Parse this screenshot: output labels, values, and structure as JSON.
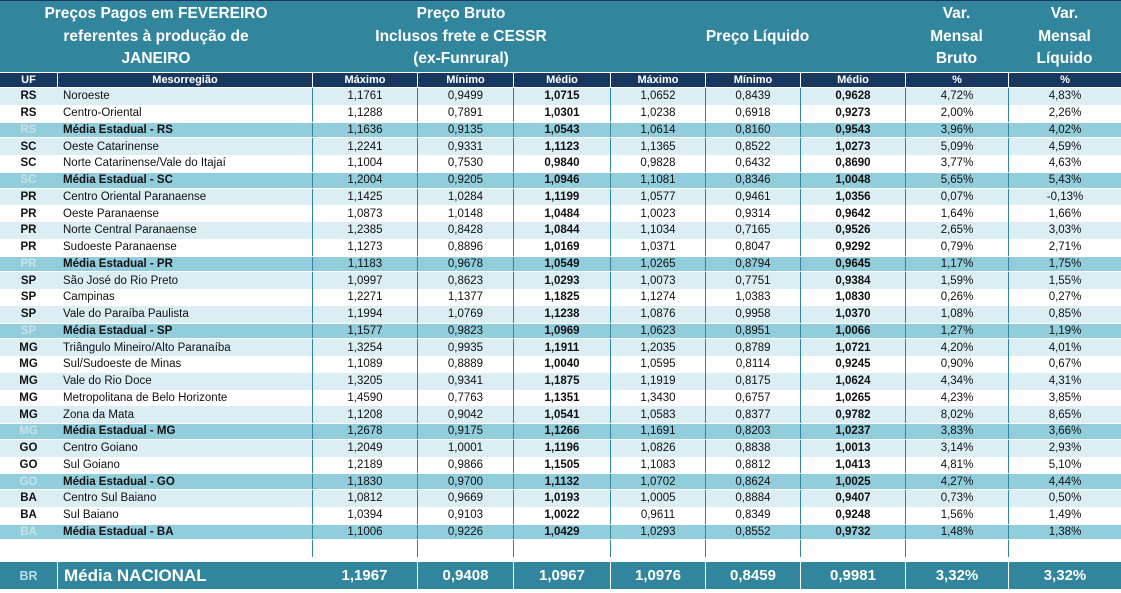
{
  "colors": {
    "teal": "#31859C",
    "navy": "#17375E",
    "row-light": "#DAEEF3",
    "row-media": "#92CDDC",
    "border-data": "#31859C",
    "uf-media-text": "#C7E2EB",
    "footer-uf-text": "#B7DEE8",
    "text-dark": "#111111"
  },
  "header": {
    "title": {
      "line1": "Preços Pagos em FEVEREIRO",
      "line2": "referentes à produção de",
      "line3": "JANEIRO"
    },
    "groups": {
      "bruto": {
        "line1": "Preço Bruto",
        "line2": "Inclusos frete e CESSR",
        "line3": "(ex-Funrural)"
      },
      "liquido": "Preço Líquido",
      "var_bruto": {
        "line1": "Var.",
        "line2": "Mensal",
        "line3": "Bruto"
      },
      "var_liquido": {
        "line1": "Var.",
        "line2": "Mensal",
        "line3": "Líquido"
      }
    },
    "columns": {
      "uf": "UF",
      "region": "Mesorregião",
      "bruto_max": "Máximo",
      "bruto_min": "Mínimo",
      "bruto_med": "Médio",
      "liq_max": "Máximo",
      "liq_min": "Mínimo",
      "liq_med": "Médio",
      "var_bruto": "%",
      "var_liq": "%"
    }
  },
  "table": {
    "rows": [
      {
        "uf": "RS",
        "region": "Noroeste",
        "values": [
          "1,1761",
          "0,9499",
          "1,0715",
          "1,0652",
          "0,8439",
          "0,9628",
          "4,72%",
          "4,83%"
        ],
        "kind": "a"
      },
      {
        "uf": "RS",
        "region": "Centro-Oriental",
        "values": [
          "1,1288",
          "0,7891",
          "1,0301",
          "1,0238",
          "0,6918",
          "0,9273",
          "2,00%",
          "2,26%"
        ],
        "kind": "b"
      },
      {
        "uf": "RS",
        "region": "Média Estadual - RS",
        "values": [
          "1,1636",
          "0,9135",
          "1,0543",
          "1,0614",
          "0,8160",
          "0,9543",
          "3,96%",
          "4,02%"
        ],
        "kind": "m"
      },
      {
        "uf": "SC",
        "region": "Oeste Catarinense",
        "values": [
          "1,2241",
          "0,9331",
          "1,1123",
          "1,1365",
          "0,8522",
          "1,0273",
          "5,09%",
          "4,59%"
        ],
        "kind": "a"
      },
      {
        "uf": "SC",
        "region": "Norte Catarinense/Vale do Itajaí",
        "values": [
          "1,1004",
          "0,7530",
          "0,9840",
          "0,9828",
          "0,6432",
          "0,8690",
          "3,77%",
          "4,63%"
        ],
        "kind": "b"
      },
      {
        "uf": "SC",
        "region": "Média Estadual - SC",
        "values": [
          "1,2004",
          "0,9205",
          "1,0946",
          "1,1081",
          "0,8346",
          "1,0048",
          "5,65%",
          "5,43%"
        ],
        "kind": "m"
      },
      {
        "uf": "PR",
        "region": "Centro Oriental Paranaense",
        "values": [
          "1,1425",
          "1,0284",
          "1,1199",
          "1,0577",
          "0,9461",
          "1,0356",
          "0,07%",
          "-0,13%"
        ],
        "kind": "a"
      },
      {
        "uf": "PR",
        "region": "Oeste Paranaense",
        "values": [
          "1,0873",
          "1,0148",
          "1,0484",
          "1,0023",
          "0,9314",
          "0,9642",
          "1,64%",
          "1,66%"
        ],
        "kind": "b"
      },
      {
        "uf": "PR",
        "region": "Norte Central Paranaense",
        "values": [
          "1,2385",
          "0,8428",
          "1,0844",
          "1,1034",
          "0,7165",
          "0,9526",
          "2,65%",
          "3,03%"
        ],
        "kind": "a"
      },
      {
        "uf": "PR",
        "region": "Sudoeste Paranaense",
        "values": [
          "1,1273",
          "0,8896",
          "1,0169",
          "1,0371",
          "0,8047",
          "0,9292",
          "0,79%",
          "2,71%"
        ],
        "kind": "b"
      },
      {
        "uf": "PR",
        "region": "Média Estadual - PR",
        "values": [
          "1,1183",
          "0,9678",
          "1,0549",
          "1,0265",
          "0,8794",
          "0,9645",
          "1,17%",
          "1,75%"
        ],
        "kind": "m"
      },
      {
        "uf": "SP",
        "region": "São José do Rio Preto",
        "values": [
          "1,0997",
          "0,8623",
          "1,0293",
          "1,0073",
          "0,7751",
          "0,9384",
          "1,59%",
          "1,55%"
        ],
        "kind": "a"
      },
      {
        "uf": "SP",
        "region": "Campinas",
        "values": [
          "1,2271",
          "1,1377",
          "1,1825",
          "1,1274",
          "1,0383",
          "1,0830",
          "0,26%",
          "0,27%"
        ],
        "kind": "b"
      },
      {
        "uf": "SP",
        "region": "Vale do Paraíba Paulista",
        "values": [
          "1,1994",
          "1,0769",
          "1,1238",
          "1,0876",
          "0,9958",
          "1,0370",
          "1,08%",
          "0,85%"
        ],
        "kind": "a"
      },
      {
        "uf": "SP",
        "region": "Média Estadual - SP",
        "values": [
          "1,1577",
          "0,9823",
          "1,0969",
          "1,0623",
          "0,8951",
          "1,0066",
          "1,27%",
          "1,19%"
        ],
        "kind": "m"
      },
      {
        "uf": "MG",
        "region": "Triângulo Mineiro/Alto Paranaíba",
        "values": [
          "1,3254",
          "0,9935",
          "1,1911",
          "1,2035",
          "0,8789",
          "1,0721",
          "4,20%",
          "4,01%"
        ],
        "kind": "a"
      },
      {
        "uf": "MG",
        "region": "Sul/Sudoeste de Minas",
        "values": [
          "1,1089",
          "0,8889",
          "1,0040",
          "1,0595",
          "0,8114",
          "0,9245",
          "0,90%",
          "0,67%"
        ],
        "kind": "b"
      },
      {
        "uf": "MG",
        "region": "Vale do Rio Doce",
        "values": [
          "1,3205",
          "0,9341",
          "1,1875",
          "1,1919",
          "0,8175",
          "1,0624",
          "4,34%",
          "4,31%"
        ],
        "kind": "a"
      },
      {
        "uf": "MG",
        "region": "Metropolitana de Belo Horizonte",
        "values": [
          "1,4590",
          "0,7763",
          "1,1351",
          "1,3430",
          "0,6757",
          "1,0265",
          "4,23%",
          "3,85%"
        ],
        "kind": "b"
      },
      {
        "uf": "MG",
        "region": "Zona da Mata",
        "values": [
          "1,1208",
          "0,9042",
          "1,0541",
          "1,0583",
          "0,8377",
          "0,9782",
          "8,02%",
          "8,65%"
        ],
        "kind": "a"
      },
      {
        "uf": "MG",
        "region": "Média Estadual - MG",
        "values": [
          "1,2678",
          "0,9175",
          "1,1266",
          "1,1691",
          "0,8203",
          "1,0237",
          "3,83%",
          "3,66%"
        ],
        "kind": "m"
      },
      {
        "uf": "GO",
        "region": "Centro Goiano",
        "values": [
          "1,2049",
          "1,0001",
          "1,1196",
          "1,0826",
          "0,8838",
          "1,0013",
          "3,14%",
          "2,93%"
        ],
        "kind": "a"
      },
      {
        "uf": "GO",
        "region": "Sul Goiano",
        "values": [
          "1,2189",
          "0,9866",
          "1,1505",
          "1,1083",
          "0,8812",
          "1,0413",
          "4,81%",
          "5,10%"
        ],
        "kind": "b"
      },
      {
        "uf": "GO",
        "region": "Média Estadual - GO",
        "values": [
          "1,1830",
          "0,9700",
          "1,1132",
          "1,0702",
          "0,8624",
          "1,0025",
          "4,27%",
          "4,44%"
        ],
        "kind": "m"
      },
      {
        "uf": "BA",
        "region": "Centro Sul Baiano",
        "values": [
          "1,0812",
          "0,9669",
          "1,0193",
          "1,0005",
          "0,8884",
          "0,9407",
          "0,73%",
          "0,50%"
        ],
        "kind": "a"
      },
      {
        "uf": "BA",
        "region": "Sul Baiano",
        "values": [
          "1,0394",
          "0,9103",
          "1,0022",
          "0,9611",
          "0,8349",
          "0,9248",
          "1,56%",
          "1,49%"
        ],
        "kind": "b"
      },
      {
        "uf": "BA",
        "region": "Média Estadual - BA",
        "values": [
          "1,1006",
          "0,9226",
          "1,0429",
          "1,0293",
          "0,8552",
          "0,9732",
          "1,48%",
          "1,38%"
        ],
        "kind": "m"
      },
      {
        "uf": "",
        "region": "",
        "values": [
          "",
          "",
          "",
          "",
          "",
          "",
          "",
          ""
        ],
        "kind": "e"
      }
    ]
  },
  "footer": {
    "uf": "BR",
    "label": "Média NACIONAL",
    "values": [
      "1,1967",
      "0,9408",
      "1,0967",
      "1,0976",
      "0,8459",
      "0,9981",
      "3,32%",
      "3,32%"
    ]
  }
}
